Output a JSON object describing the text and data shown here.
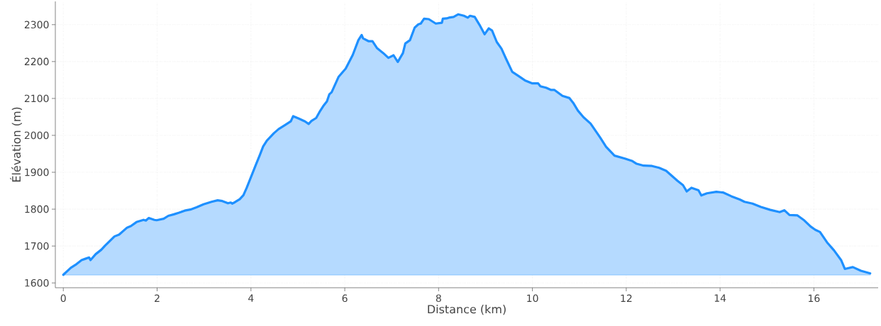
{
  "chart_data": {
    "type": "area",
    "xlabel": "Distance (km)",
    "ylabel": "Élévation (m)",
    "color": "#1e90ff",
    "line_style": "solid",
    "grid": true,
    "xlim": [
      -0.17,
      17.37
    ],
    "ylim": [
      1587,
      2363
    ],
    "xticks": [
      0,
      2,
      4,
      6,
      8,
      10,
      12,
      14,
      16
    ],
    "yticks": [
      1600,
      1700,
      1800,
      1900,
      2000,
      2100,
      2200,
      2300
    ],
    "x": [
      0,
      0.16,
      0.26,
      0.39,
      0.46,
      0.55,
      0.58,
      0.69,
      0.81,
      0.89,
      1.09,
      1.19,
      1.36,
      1.44,
      1.56,
      1.71,
      1.76,
      1.82,
      1.94,
      1.99,
      2.14,
      2.24,
      2.36,
      2.46,
      2.59,
      2.71,
      2.84,
      2.99,
      3.16,
      3.29,
      3.39,
      3.51,
      3.57,
      3.6,
      3.66,
      3.76,
      3.84,
      3.91,
      4.01,
      4.11,
      4.19,
      4.26,
      4.34,
      4.49,
      4.59,
      4.74,
      4.85,
      4.9,
      5.01,
      5.15,
      5.23,
      5.29,
      5.39,
      5.46,
      5.54,
      5.62,
      5.67,
      5.72,
      5.87,
      6.02,
      6.17,
      6.29,
      6.36,
      6.39,
      6.51,
      6.59,
      6.69,
      6.82,
      6.93,
      7.04,
      7.13,
      7.24,
      7.29,
      7.39,
      7.49,
      7.57,
      7.62,
      7.69,
      7.79,
      7.94,
      8.07,
      8.09,
      8.17,
      8.22,
      8.32,
      8.42,
      8.54,
      8.62,
      8.67,
      8.77,
      8.87,
      8.98,
      9.07,
      9.14,
      9.24,
      9.34,
      9.44,
      9.57,
      9.69,
      9.84,
      9.99,
      10.12,
      10.17,
      10.29,
      10.4,
      10.47,
      10.64,
      10.79,
      10.87,
      10.97,
      11.09,
      11.24,
      11.44,
      11.57,
      11.75,
      11.97,
      12.12,
      12.22,
      12.37,
      12.55,
      12.7,
      12.85,
      13.09,
      13.21,
      13.29,
      13.39,
      13.54,
      13.6,
      13.72,
      13.92,
      14.07,
      14.24,
      14.42,
      14.52,
      14.69,
      14.87,
      15.07,
      15.27,
      15.37,
      15.48,
      15.65,
      15.78,
      15.93,
      16.03,
      16.13,
      16.28,
      16.43,
      16.58,
      16.66,
      16.83,
      17.0,
      17.2
    ],
    "values": [
      1622,
      1641,
      1649,
      1662,
      1665,
      1669,
      1662,
      1678,
      1690,
      1701,
      1726,
      1731,
      1750,
      1754,
      1765,
      1771,
      1769,
      1776,
      1771,
      1770,
      1774,
      1782,
      1786,
      1790,
      1796,
      1799,
      1805,
      1813,
      1820,
      1824,
      1822,
      1816,
      1818,
      1815,
      1819,
      1827,
      1838,
      1858,
      1890,
      1922,
      1947,
      1970,
      1986,
      2006,
      2017,
      2029,
      2038,
      2052,
      2046,
      2038,
      2031,
      2039,
      2047,
      2063,
      2079,
      2092,
      2111,
      2117,
      2159,
      2181,
      2218,
      2258,
      2272,
      2263,
      2255,
      2255,
      2236,
      2223,
      2210,
      2217,
      2199,
      2223,
      2249,
      2258,
      2292,
      2301,
      2303,
      2316,
      2315,
      2303,
      2305,
      2316,
      2317,
      2319,
      2321,
      2328,
      2324,
      2319,
      2324,
      2321,
      2300,
      2274,
      2290,
      2284,
      2253,
      2235,
      2207,
      2172,
      2162,
      2149,
      2141,
      2141,
      2133,
      2129,
      2123,
      2123,
      2107,
      2101,
      2088,
      2067,
      2049,
      2032,
      1995,
      1969,
      1945,
      1937,
      1931,
      1923,
      1918,
      1917,
      1912,
      1904,
      1877,
      1865,
      1848,
      1858,
      1851,
      1837,
      1843,
      1847,
      1845,
      1835,
      1826,
      1820,
      1815,
      1806,
      1798,
      1792,
      1797,
      1784,
      1783,
      1771,
      1753,
      1744,
      1738,
      1710,
      1688,
      1662,
      1638,
      1643,
      1633,
      1626
    ]
  }
}
